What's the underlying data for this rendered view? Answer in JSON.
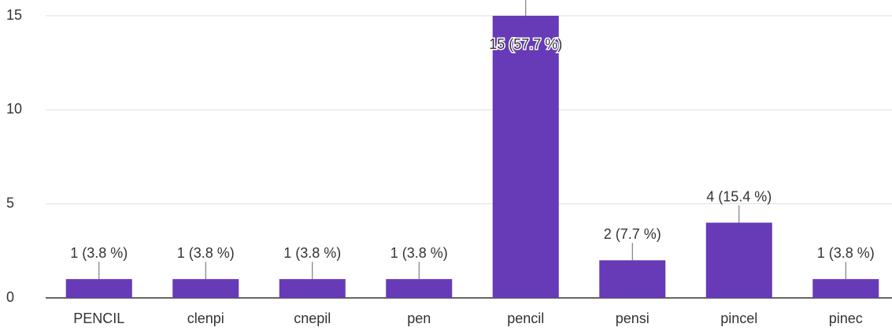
{
  "chart_data": {
    "type": "bar",
    "categories": [
      "PENCIL",
      "clenpi",
      "cnepil",
      "pen",
      "pencil",
      "pensi",
      "pincel",
      "pinec"
    ],
    "values": [
      1,
      1,
      1,
      1,
      15,
      2,
      4,
      1
    ],
    "value_labels": [
      "1 (3.8 %)",
      "1 (3.8 %)",
      "1 (3.8 %)",
      "1 (3.8 %)",
      "15 (57.7 %)",
      "2 (7.7 %)",
      "4 (15.4 %)",
      "1 (3.8 %)"
    ],
    "color": "#673ab7",
    "ylim": [
      0,
      15
    ],
    "yticks": [
      0,
      5,
      10,
      15
    ],
    "grid": true
  }
}
